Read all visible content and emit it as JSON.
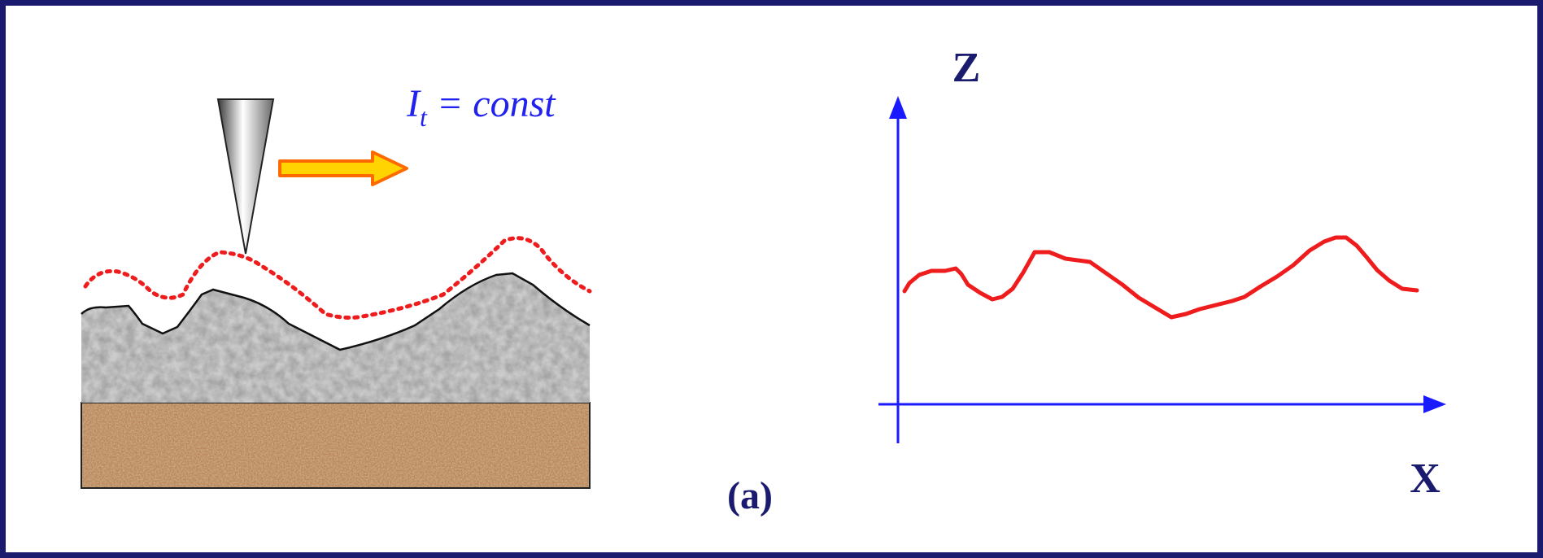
{
  "diagram": {
    "tip_label": {
      "main": "I",
      "subscript": "t",
      "rest": " = const"
    },
    "panel_label": "(a)",
    "z_axis_label": "Z",
    "x_axis_label": "X"
  },
  "colors": {
    "frame": "#1a1a6e",
    "axis": "#1a1aff",
    "profile": "#ee1c1c",
    "label": "#1a1a6e",
    "tip_label": "#2222ee",
    "arrow_fill": "#ffd400",
    "arrow_stroke": "#ff6a00",
    "surface_layer": "#9a9a9a",
    "substrate_layer": "#b9855a",
    "tip_path": "#ee1c1c"
  },
  "icons": {
    "tip": "stm-tip-cone",
    "scan_direction": "right-arrow-icon"
  }
}
